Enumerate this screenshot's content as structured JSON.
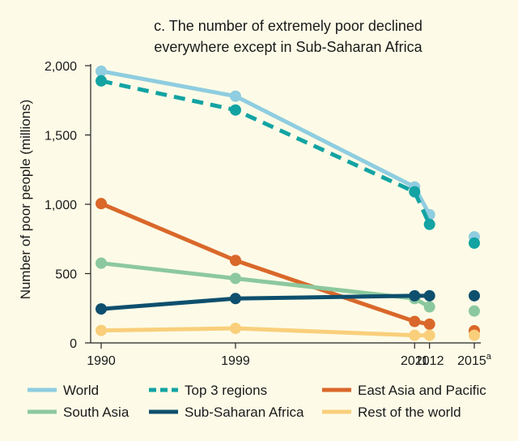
{
  "chart_data": {
    "type": "line",
    "title_lines": [
      "c. The number of extremely poor declined",
      "everywhere except in Sub-Saharan Africa"
    ],
    "xlabel": "",
    "ylabel": "Number of poor people (millions)",
    "ylim": [
      0,
      2000
    ],
    "y_ticks": [
      {
        "value": 0,
        "label": "0"
      },
      {
        "value": 500,
        "label": "500"
      },
      {
        "value": 1000,
        "label": "1,000"
      },
      {
        "value": 1500,
        "label": "1,500"
      },
      {
        "value": 2000,
        "label": "2,000"
      }
    ],
    "x_ticks": [
      {
        "value": 1990,
        "label": "1990",
        "sup": ""
      },
      {
        "value": 1999,
        "label": "1999",
        "sup": ""
      },
      {
        "value": 2011,
        "label": "2011",
        "sup": ""
      },
      {
        "value": 2012,
        "label": "2012",
        "sup": ""
      },
      {
        "value": 2015,
        "label": "2015",
        "sup": "a"
      }
    ],
    "grid": false,
    "legend_position": "bottom",
    "series": [
      {
        "name": "World",
        "color": "#8fcde0",
        "dashed": false,
        "points": [
          [
            1990,
            1960
          ],
          [
            1999,
            1780
          ],
          [
            2011,
            1125
          ],
          [
            2012,
            925
          ]
        ],
        "projection": [
          2015,
          765
        ]
      },
      {
        "name": "Top 3 regions",
        "color": "#13a3a3",
        "dashed": true,
        "points": [
          [
            1990,
            1890
          ],
          [
            1999,
            1680
          ],
          [
            2011,
            1090
          ],
          [
            2012,
            855
          ]
        ],
        "projection": [
          2015,
          720
        ]
      },
      {
        "name": "East Asia and Pacific",
        "color": "#d9682a",
        "dashed": false,
        "points": [
          [
            1990,
            1005
          ],
          [
            1999,
            595
          ],
          [
            2011,
            155
          ],
          [
            2012,
            135
          ]
        ],
        "projection": [
          2015,
          88
        ]
      },
      {
        "name": "South Asia",
        "color": "#8cc89e",
        "dashed": false,
        "points": [
          [
            1990,
            575
          ],
          [
            1999,
            465
          ],
          [
            2011,
            320
          ],
          [
            2012,
            260
          ]
        ],
        "projection": [
          2015,
          230
        ]
      },
      {
        "name": "Sub-Saharan Africa",
        "color": "#0e4f6e",
        "dashed": false,
        "points": [
          [
            1990,
            245
          ],
          [
            1999,
            320
          ],
          [
            2011,
            340
          ],
          [
            2012,
            340
          ]
        ],
        "projection": [
          2015,
          340
        ]
      },
      {
        "name": "Rest of the world",
        "color": "#f9cf7b",
        "dashed": false,
        "points": [
          [
            1990,
            90
          ],
          [
            1999,
            105
          ],
          [
            2011,
            55
          ],
          [
            2012,
            55
          ]
        ],
        "projection": [
          2015,
          55
        ]
      }
    ]
  }
}
